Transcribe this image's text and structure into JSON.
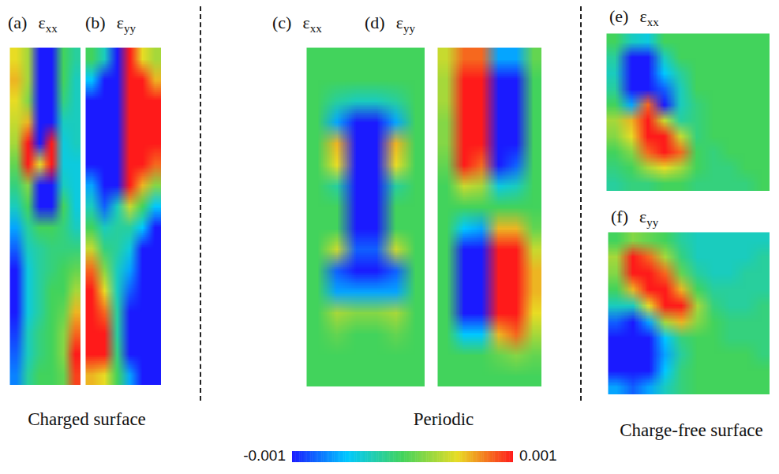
{
  "chart_data": [
    {
      "type": "heatmap",
      "label": "(a)",
      "title": "εxx",
      "group": "Charged surface",
      "tick_labels": false,
      "cells": [
        [
          0.0005,
          0.0003,
          -0.001,
          -0.001,
          0,
          -0.0002
        ],
        [
          0.0006,
          0.0003,
          -0.001,
          -0.001,
          0,
          -0.0003
        ],
        [
          0.0005,
          0.0002,
          -0.001,
          -0.001,
          -0.0001,
          -0.0003
        ],
        [
          0.0004,
          0.0006,
          -0.001,
          -0.001,
          -0.0003,
          -0.0003
        ],
        [
          0.0003,
          0.001,
          -0.001,
          0.001,
          -0.0004,
          -0.0003
        ],
        [
          0.0001,
          0.001,
          0.0005,
          0.001,
          -0.0004,
          -0.0004
        ],
        [
          -0.0001,
          0.0002,
          -0.001,
          -0.001,
          -0.0003,
          -0.0004
        ],
        [
          -0.0003,
          0,
          -0.001,
          -0.001,
          0,
          -0.0004
        ],
        [
          -0.0006,
          -0.0002,
          0,
          0,
          -0.0001,
          -0.0003
        ],
        [
          -0.0008,
          -0.0003,
          -0.0002,
          -0.0001,
          -0.0001,
          -0.0001
        ],
        [
          -0.001,
          -0.0004,
          -0.0002,
          -0.0001,
          0,
          0.0001
        ],
        [
          -0.001,
          -0.0004,
          -0.0002,
          0,
          0,
          0.0003
        ],
        [
          -0.001,
          -0.0004,
          -0.0002,
          0,
          0.0001,
          0.0006
        ],
        [
          -0.0009,
          -0.0003,
          -0.0001,
          0,
          0.0002,
          0.0008
        ],
        [
          -0.0008,
          -0.0003,
          -0.0001,
          0,
          0.0002,
          0.001
        ],
        [
          -0.0007,
          -0.0002,
          0,
          0,
          0.0001,
          0.0009
        ]
      ]
    },
    {
      "type": "heatmap",
      "label": "(b)",
      "title": "εyy",
      "group": "Charged surface",
      "tick_labels": false,
      "cells": [
        [
          0,
          -0.0003,
          -0.001,
          0.001,
          0.0005,
          0.0003
        ],
        [
          -0.0005,
          -0.001,
          -0.001,
          0.001,
          0.001,
          0.0006
        ],
        [
          -0.001,
          -0.001,
          -0.001,
          0.001,
          0.001,
          0.001
        ],
        [
          -0.001,
          -0.001,
          -0.001,
          0.001,
          0.001,
          0.001
        ],
        [
          -0.001,
          -0.001,
          -0.001,
          0.001,
          0.001,
          0.001
        ],
        [
          -0.001,
          -0.001,
          -0.001,
          0.001,
          0.001,
          0.0008
        ],
        [
          -0.0006,
          -0.001,
          -0.001,
          0.001,
          0.0006,
          0.0002
        ],
        [
          -0.0003,
          -0.0008,
          -0.0003,
          0.0004,
          0,
          -0.0005
        ],
        [
          0,
          -0.0003,
          -0.0002,
          -0.0002,
          -0.0005,
          -0.001
        ],
        [
          0.0004,
          -0.0001,
          -0.0002,
          -0.0004,
          -0.001,
          -0.001
        ],
        [
          0.0008,
          0.0002,
          -0.0003,
          -0.0006,
          -0.001,
          -0.001
        ],
        [
          0.001,
          0.0005,
          -0.0003,
          -0.0008,
          -0.001,
          -0.001
        ],
        [
          0.001,
          0.0008,
          -0.0002,
          -0.001,
          -0.001,
          -0.001
        ],
        [
          0.001,
          0.001,
          -0.0002,
          -0.001,
          -0.001,
          -0.001
        ],
        [
          0.001,
          0.001,
          -0.0001,
          -0.001,
          -0.001,
          -0.001
        ],
        [
          0.0006,
          0.0005,
          0,
          -0.0006,
          -0.001,
          -0.001
        ]
      ]
    },
    {
      "type": "heatmap",
      "label": "(c)",
      "title": "εxx",
      "group": "Periodic",
      "tick_labels": false,
      "cells": [
        [
          0,
          0,
          0,
          0,
          0,
          0
        ],
        [
          0,
          0,
          0,
          0,
          0,
          0
        ],
        [
          0,
          -0.0002,
          -0.0003,
          -0.0003,
          -0.0002,
          0
        ],
        [
          0,
          -0.0006,
          -0.001,
          -0.001,
          -0.0006,
          0
        ],
        [
          0,
          0.0006,
          -0.001,
          -0.001,
          0.0006,
          0
        ],
        [
          0,
          0.0005,
          -0.001,
          -0.001,
          0.0005,
          0
        ],
        [
          0,
          -0.0002,
          -0.001,
          -0.001,
          -0.0002,
          0
        ],
        [
          0,
          0,
          -0.001,
          -0.001,
          0,
          0
        ],
        [
          0,
          0,
          -0.001,
          -0.001,
          0,
          0
        ],
        [
          0,
          0.0004,
          -0.0008,
          -0.0008,
          0.0004,
          0
        ],
        [
          0,
          -0.0008,
          -0.001,
          -0.001,
          -0.0008,
          0
        ],
        [
          0,
          -0.0006,
          -0.0006,
          -0.0006,
          -0.0006,
          0
        ],
        [
          0,
          0.0003,
          0.0002,
          0.0002,
          0.0003,
          0
        ],
        [
          0,
          0.0001,
          0,
          0,
          0.0001,
          0
        ],
        [
          0,
          0,
          0,
          0,
          0,
          0
        ],
        [
          0,
          0,
          0,
          0,
          0,
          0
        ]
      ]
    },
    {
      "type": "heatmap",
      "label": "(d)",
      "title": "εyy",
      "group": "Periodic",
      "tick_labels": false,
      "cells": [
        [
          0.0004,
          0.0008,
          0.0008,
          -0.0006,
          -0.0006,
          0.0001
        ],
        [
          0.0003,
          0.001,
          0.001,
          -0.001,
          -0.001,
          0
        ],
        [
          0.0003,
          0.001,
          0.001,
          -0.001,
          -0.001,
          0
        ],
        [
          0.0002,
          0.001,
          0.001,
          -0.001,
          -0.001,
          0
        ],
        [
          0.0002,
          0.001,
          0.001,
          -0.001,
          -0.001,
          0
        ],
        [
          0.0001,
          0.001,
          0.0008,
          -0.001,
          -0.0008,
          0
        ],
        [
          0,
          0.0004,
          0.0003,
          -0.0004,
          -0.0003,
          0
        ],
        [
          0,
          0,
          0,
          0,
          0,
          0
        ],
        [
          0,
          -0.0005,
          -0.0006,
          0.0006,
          0.0006,
          0.0001
        ],
        [
          0,
          -0.001,
          -0.001,
          0.001,
          0.001,
          0.0004
        ],
        [
          0,
          -0.001,
          -0.001,
          0.001,
          0.001,
          0.0006
        ],
        [
          0,
          -0.001,
          -0.001,
          0.001,
          0.001,
          0.0006
        ],
        [
          0,
          -0.001,
          -0.001,
          0.001,
          0.001,
          0.0005
        ],
        [
          0,
          -0.0005,
          -0.0005,
          0.0006,
          0.0008,
          0.0003
        ],
        [
          0,
          0,
          0,
          0.0001,
          0.0002,
          0.0001
        ],
        [
          0,
          0,
          0,
          0,
          0,
          0
        ]
      ]
    },
    {
      "type": "heatmap",
      "label": "(e)",
      "title": "εxx",
      "group": "Charge-free surface",
      "tick_labels": false,
      "cells": [
        [
          0,
          -0.0003,
          -0.0004,
          0,
          0,
          0,
          0,
          0,
          0,
          0
        ],
        [
          -0.0002,
          -0.001,
          -0.001,
          -0.0003,
          0,
          0,
          0,
          0,
          0,
          0
        ],
        [
          -0.0003,
          -0.001,
          -0.001,
          -0.0005,
          -0.0002,
          0,
          0,
          0,
          0,
          0
        ],
        [
          -0.0002,
          -0.001,
          -0.001,
          -0.0008,
          -0.0003,
          0,
          0,
          0,
          0,
          0
        ],
        [
          0,
          -0.0006,
          0.0008,
          -0.001,
          -0.0003,
          -0.0001,
          0,
          0,
          0,
          0
        ],
        [
          0.0003,
          0.0006,
          0.001,
          0.0004,
          -0.0002,
          -0.0001,
          0,
          0,
          0,
          0
        ],
        [
          0.0002,
          0.0005,
          0.001,
          0.001,
          0.0004,
          -0.0001,
          0,
          0,
          0,
          0
        ],
        [
          0,
          0.0002,
          0.0008,
          0.001,
          0.0008,
          0,
          -0.0001,
          0,
          0,
          0
        ],
        [
          -0.0001,
          0,
          0.0003,
          0.0005,
          0.0003,
          0,
          -0.0001,
          -0.0001,
          0,
          0
        ],
        [
          -0.0002,
          -0.0001,
          -0.0001,
          0,
          0,
          -0.0001,
          -0.0001,
          -0.0001,
          -0.0001,
          0
        ]
      ]
    },
    {
      "type": "heatmap",
      "label": "(f)",
      "title": "εyy",
      "group": "Charge-free surface",
      "tick_labels": false,
      "cells": [
        [
          0,
          0.0002,
          0.0001,
          0,
          -0.0002,
          -0.0003,
          -0.0003,
          -0.0003,
          -0.0003,
          -0.0003
        ],
        [
          0.0003,
          0.001,
          0.0008,
          0.0003,
          -0.0001,
          -0.0003,
          -0.0003,
          -0.0003,
          -0.0003,
          -0.0002
        ],
        [
          0.0002,
          0.001,
          0.001,
          0.0008,
          0.0001,
          -0.0002,
          -0.0003,
          -0.0003,
          -0.0002,
          -0.0002
        ],
        [
          0,
          0.0006,
          0.001,
          0.001,
          0.0006,
          0,
          -0.0002,
          -0.0002,
          -0.0002,
          -0.0002
        ],
        [
          -0.0003,
          -0.0003,
          0.0005,
          0.001,
          0.001,
          0.0003,
          -0.0001,
          -0.0002,
          -0.0002,
          -0.0001
        ],
        [
          -0.0008,
          -0.001,
          -0.0006,
          0.0003,
          0.0006,
          0.0002,
          0,
          -0.0001,
          -0.0001,
          -0.0001
        ],
        [
          -0.001,
          -0.001,
          -0.001,
          -0.0005,
          -0.0001,
          0,
          0,
          -0.0001,
          -0.0001,
          -0.0001
        ],
        [
          -0.001,
          -0.001,
          -0.001,
          -0.0006,
          -0.0002,
          0,
          0,
          0,
          0,
          -0.0001
        ],
        [
          -0.001,
          -0.001,
          -0.001,
          -0.0005,
          -0.0001,
          0,
          0,
          0,
          0,
          0
        ],
        [
          -0.0006,
          -0.0008,
          -0.0006,
          -0.0003,
          -0.0001,
          0,
          0,
          0,
          0,
          0
        ]
      ]
    }
  ],
  "colorbar": {
    "range": [
      -0.001,
      0.001
    ],
    "ticks": [
      -0.001,
      0.001
    ]
  }
}
